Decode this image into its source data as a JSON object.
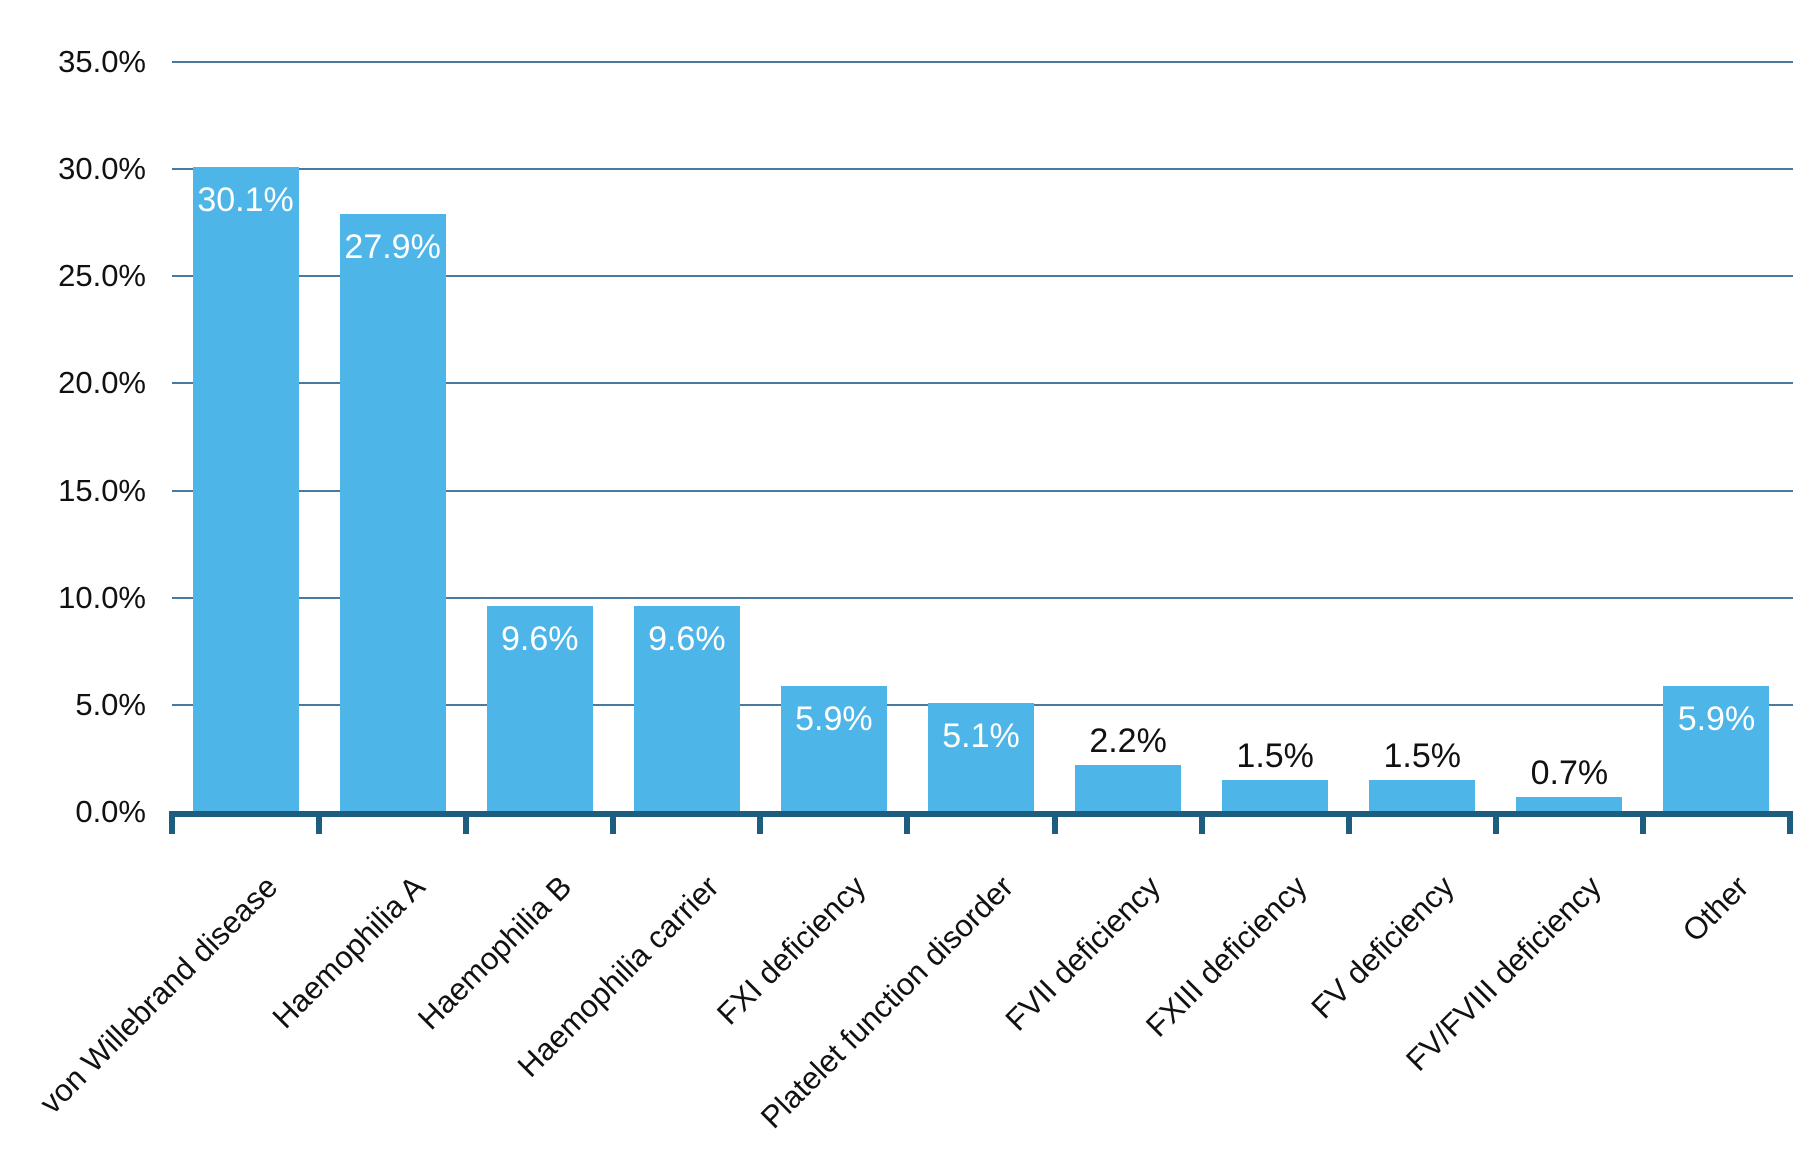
{
  "chart_data": {
    "type": "bar",
    "categories": [
      "von Willebrand disease",
      "Haemophilia A",
      "Haemophilia B",
      "Haemophilia carrier",
      "FXI deficiency",
      "Platelet function disorder",
      "FVII deficiency",
      "FXIII deficiency",
      "FV deficiency",
      "FV/FVIII deficiency",
      "Other"
    ],
    "values": [
      30.1,
      27.9,
      9.6,
      9.6,
      5.9,
      5.1,
      2.2,
      1.5,
      1.5,
      0.7,
      5.9
    ],
    "value_labels": [
      "30.1%",
      "27.9%",
      "9.6%",
      "9.6%",
      "5.9%",
      "5.1%",
      "2.2%",
      "1.5%",
      "1.5%",
      "0.7%",
      "5.9%"
    ],
    "label_placement": [
      "inside",
      "inside",
      "inside",
      "inside",
      "inside",
      "inside",
      "above",
      "above",
      "above",
      "above",
      "inside"
    ],
    "y_axis": {
      "tick_labels": [
        "35.0%",
        "30.0%",
        "25.0%",
        "20.0%",
        "15.0%",
        "10.0%",
        "5.0%",
        "0.0%"
      ],
      "min": 0,
      "max": 35,
      "step": 5
    },
    "grid": "horizontal",
    "legend": "none",
    "title": "",
    "colors": {
      "bar": "#4DB5E8",
      "axis": "#1C5D80",
      "gridline": "#4A7AA0",
      "label_inside": "#FFFFFF",
      "label_outside": "#111111",
      "tick_text": "#111111",
      "background": "#FFFFFF"
    }
  }
}
